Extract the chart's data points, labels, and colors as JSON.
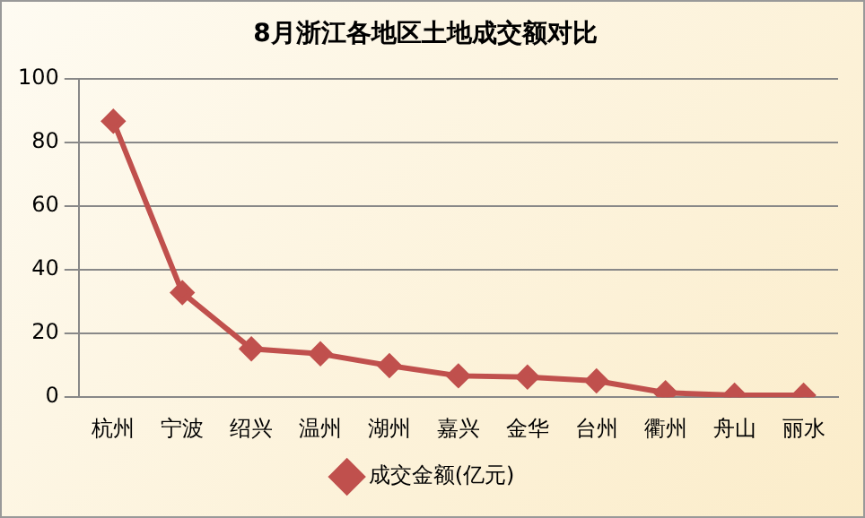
{
  "chart_data": {
    "type": "line",
    "title": "8月浙江各地区土地成交额对比",
    "categories": [
      "杭州",
      "宁波",
      "绍兴",
      "温州",
      "湖州",
      "嘉兴",
      "金华",
      "台州",
      "衢州",
      "舟山",
      "丽水"
    ],
    "series": [
      {
        "name": "成交金额(亿元)",
        "color": "#c0504d",
        "values": [
          86.6,
          32.8,
          15.2,
          13.6,
          9.9,
          6.7,
          6.3,
          5.1,
          1.4,
          0.6,
          0.6
        ]
      }
    ],
    "ylim": [
      0,
      100
    ],
    "yticks": [
      0,
      20,
      40,
      60,
      80,
      100
    ],
    "grid": "y",
    "legend": "bottom",
    "marker": "diamond",
    "line_style": "solid"
  }
}
